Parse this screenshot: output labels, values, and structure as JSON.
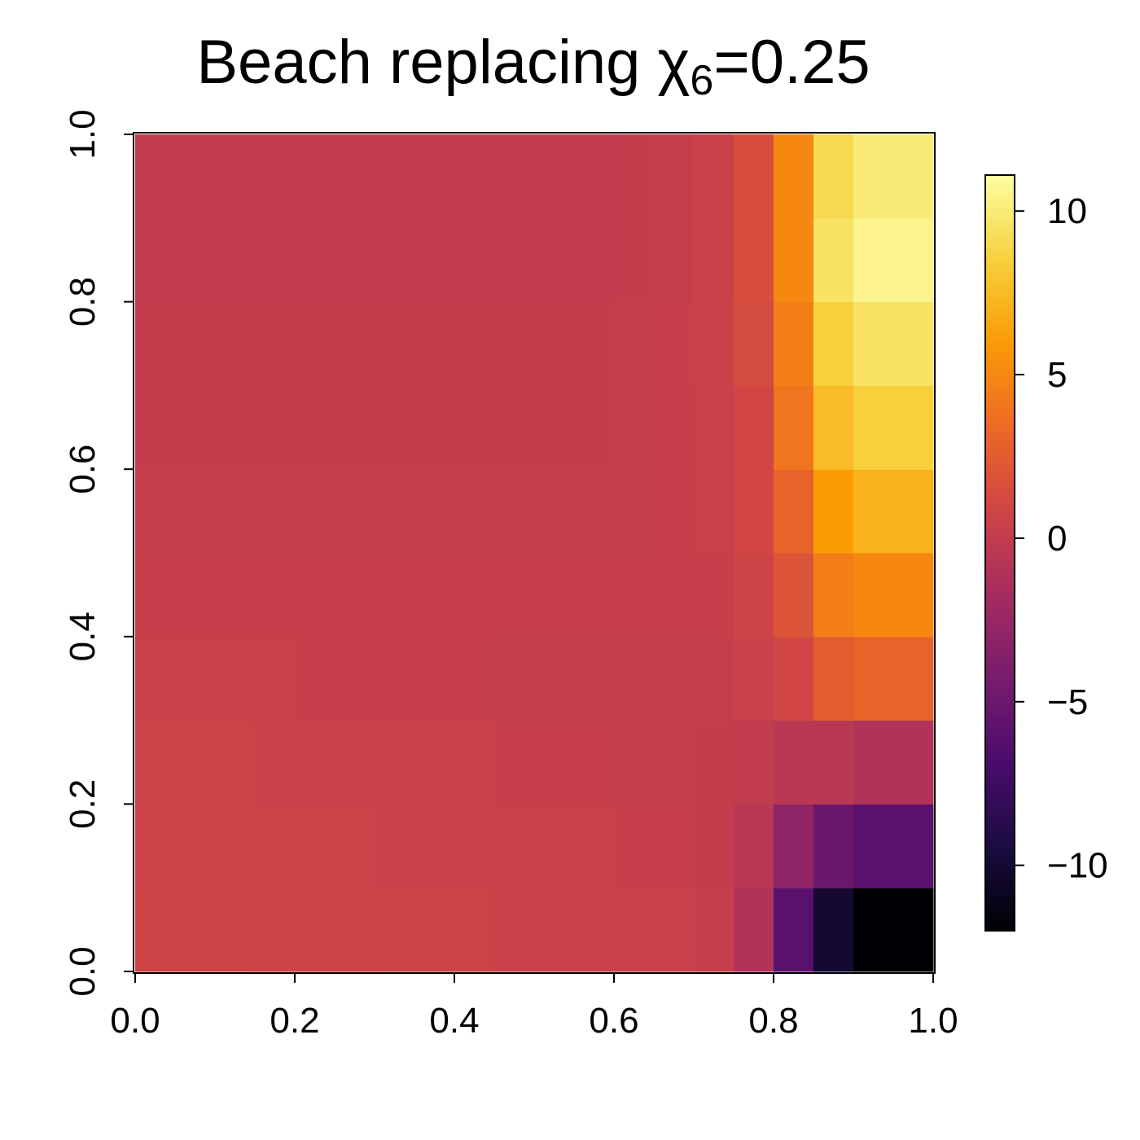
{
  "chart_data": {
    "type": "heatmap",
    "title": {
      "main": "Beach replacing χ",
      "subscript": "6",
      "suffix": "=0.25"
    },
    "x": [
      0.025,
      0.075,
      0.125,
      0.175,
      0.225,
      0.275,
      0.325,
      0.375,
      0.425,
      0.475,
      0.525,
      0.575,
      0.625,
      0.675,
      0.725,
      0.775,
      0.825,
      0.875,
      0.925,
      0.975
    ],
    "y": [
      0.05,
      0.15,
      0.25,
      0.35,
      0.45,
      0.55,
      0.65,
      0.75,
      0.85,
      0.95
    ],
    "z": [
      [
        0.8,
        0.8,
        0.8,
        0.7,
        0.7,
        0.7,
        0.6,
        0.6,
        0.6,
        0.5,
        0.5,
        0.5,
        0.4,
        0.4,
        0.2,
        -1,
        -6,
        -10,
        -12,
        -12
      ],
      [
        0.7,
        0.7,
        0.7,
        0.6,
        0.6,
        0.6,
        0.5,
        0.5,
        0.5,
        0.4,
        0.4,
        0.4,
        0.3,
        0.3,
        0.1,
        -0.5,
        -3,
        -5,
        -6,
        -6
      ],
      [
        0.6,
        0.6,
        0.6,
        0.5,
        0.5,
        0.5,
        0.4,
        0.4,
        0.4,
        0.3,
        0.3,
        0.3,
        0.2,
        0.2,
        0.1,
        0,
        -0.5,
        -0.5,
        -1,
        -1
      ],
      [
        0.4,
        0.4,
        0.4,
        0.4,
        0.3,
        0.3,
        0.3,
        0.3,
        0.3,
        0.2,
        0.2,
        0.2,
        0.2,
        0.2,
        0.2,
        0.5,
        1,
        2.5,
        3,
        3
      ],
      [
        0.3,
        0.3,
        0.3,
        0.3,
        0.3,
        0.3,
        0.3,
        0.3,
        0.3,
        0.3,
        0.3,
        0.3,
        0.3,
        0.3,
        0.3,
        0.8,
        2,
        4.5,
        5,
        5
      ],
      [
        0.2,
        0.2,
        0.2,
        0.2,
        0.2,
        0.2,
        0.2,
        0.2,
        0.2,
        0.2,
        0.2,
        0.2,
        0.2,
        0.3,
        0.4,
        1,
        3,
        6,
        7,
        7
      ],
      [
        0.1,
        0.1,
        0.1,
        0.1,
        0.1,
        0.1,
        0.1,
        0.1,
        0.1,
        0.1,
        0.1,
        0.1,
        0.2,
        0.3,
        0.4,
        1,
        4,
        7.5,
        8.5,
        8.5
      ],
      [
        0.1,
        0.1,
        0.1,
        0.1,
        0.1,
        0.1,
        0.1,
        0.1,
        0.1,
        0.1,
        0.1,
        0.1,
        0.2,
        0.3,
        0.5,
        1.3,
        4.5,
        8.5,
        9.5,
        9.5
      ],
      [
        0,
        0,
        0,
        0,
        0,
        0,
        0,
        0,
        0,
        0,
        0,
        0,
        0.1,
        0.2,
        0.5,
        1.5,
        5,
        9.5,
        10.5,
        10.5
      ],
      [
        0,
        0,
        0,
        0,
        0,
        0,
        0,
        0,
        0,
        0,
        0,
        0,
        0.1,
        0.2,
        0.5,
        1.5,
        5,
        9,
        10,
        10
      ]
    ],
    "xlim": [
      0,
      1
    ],
    "ylim": [
      0,
      1
    ],
    "xticks": [
      {
        "value": 0,
        "label": "0.0"
      },
      {
        "value": 0.2,
        "label": "0.2"
      },
      {
        "value": 0.4,
        "label": "0.4"
      },
      {
        "value": 0.6,
        "label": "0.6"
      },
      {
        "value": 0.8,
        "label": "0.8"
      },
      {
        "value": 1,
        "label": "1.0"
      }
    ],
    "yticks": [
      {
        "value": 0,
        "label": "0.0"
      },
      {
        "value": 0.2,
        "label": "0.2"
      },
      {
        "value": 0.4,
        "label": "0.4"
      },
      {
        "value": 0.6,
        "label": "0.6"
      },
      {
        "value": 0.8,
        "label": "0.8"
      },
      {
        "value": 1,
        "label": "1.0"
      }
    ],
    "zlim": [
      -12,
      11.1
    ],
    "zticks": [
      {
        "value": -10,
        "label": "−10"
      },
      {
        "value": -5,
        "label": "−5"
      },
      0,
      5,
      10
    ],
    "colormap": [
      "#000004",
      "#1b0c41",
      "#4a0c6b",
      "#781c6d",
      "#a52c60",
      "#cf4446",
      "#ed6925",
      "#fb9b06",
      "#f7d13d",
      "#fcffa4"
    ]
  }
}
